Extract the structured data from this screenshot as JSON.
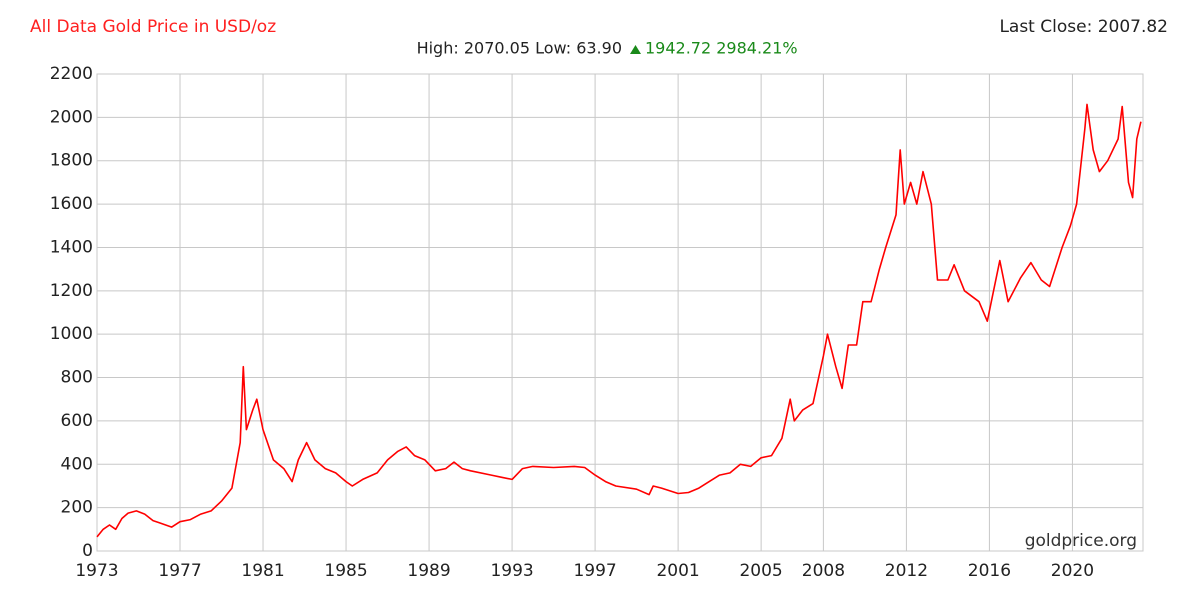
{
  "chart_data": {
    "type": "line",
    "title": "All Data Gold Price in USD/oz",
    "subtitle": "High: 2070.05 Low: 63.90",
    "change": "1942.72 2984.21%",
    "last_close": "Last Close: 2007.82",
    "watermark": "goldprice.org",
    "grid": true,
    "x": [
      1973.0,
      1973.3,
      1973.6,
      1973.9,
      1974.2,
      1974.5,
      1974.9,
      1975.3,
      1975.7,
      1976.0,
      1976.6,
      1977.0,
      1977.5,
      1978.0,
      1978.5,
      1979.0,
      1979.5,
      1979.9,
      1980.05,
      1980.2,
      1980.5,
      1980.7,
      1981.0,
      1981.5,
      1982.0,
      1982.4,
      1982.7,
      1983.1,
      1983.5,
      1984.0,
      1984.5,
      1985.0,
      1985.3,
      1985.8,
      1986.5,
      1987.0,
      1987.5,
      1987.9,
      1988.3,
      1988.8,
      1989.3,
      1989.8,
      1990.2,
      1990.6,
      1991.0,
      1992.0,
      1992.5,
      1993.0,
      1993.5,
      1994.0,
      1995.0,
      1996.0,
      1996.5,
      1997.0,
      1997.5,
      1998.0,
      1999.0,
      1999.6,
      1999.8,
      2000.2,
      2001.0,
      2001.5,
      2002.0,
      2002.5,
      2003.0,
      2003.5,
      2004.0,
      2004.5,
      2005.0,
      2005.5,
      2006.0,
      2006.4,
      2006.6,
      2007.0,
      2007.5,
      2008.0,
      2008.2,
      2008.6,
      2008.9,
      2009.2,
      2009.6,
      2009.9,
      2010.3,
      2010.7,
      2011.0,
      2011.5,
      2011.7,
      2011.9,
      2012.2,
      2012.5,
      2012.8,
      2013.2,
      2013.5,
      2014.0,
      2014.3,
      2014.8,
      2015.5,
      2015.9,
      2016.5,
      2016.9,
      2017.5,
      2018.0,
      2018.5,
      2018.9,
      2019.5,
      2019.9,
      2020.2,
      2020.6,
      2020.7,
      2021.0,
      2021.3,
      2021.7,
      2022.2,
      2022.4,
      2022.7,
      2022.9,
      2023.1,
      2023.3
    ],
    "series": [
      {
        "name": "Gold Price",
        "color": "#ff0000",
        "values": [
          65,
          100,
          120,
          100,
          150,
          175,
          185,
          170,
          140,
          130,
          110,
          135,
          145,
          170,
          185,
          230,
          290,
          500,
          850,
          560,
          650,
          700,
          560,
          420,
          380,
          320,
          420,
          500,
          420,
          380,
          360,
          320,
          300,
          330,
          360,
          420,
          460,
          480,
          440,
          420,
          370,
          380,
          410,
          380,
          370,
          350,
          340,
          330,
          380,
          390,
          385,
          390,
          385,
          350,
          320,
          300,
          285,
          260,
          300,
          290,
          265,
          270,
          290,
          320,
          350,
          360,
          400,
          390,
          430,
          440,
          520,
          700,
          600,
          650,
          680,
          900,
          1000,
          850,
          750,
          950,
          950,
          1150,
          1150,
          1300,
          1400,
          1550,
          1850,
          1600,
          1700,
          1600,
          1750,
          1600,
          1250,
          1250,
          1320,
          1200,
          1150,
          1060,
          1340,
          1150,
          1260,
          1330,
          1250,
          1220,
          1400,
          1500,
          1600,
          1950,
          2060,
          1850,
          1750,
          1800,
          1900,
          2050,
          1700,
          1630,
          1900,
          1980
        ]
      }
    ],
    "xlim": [
      1973,
      2023.4
    ],
    "xticks": [
      1973,
      1977,
      1981,
      1985,
      1989,
      1993,
      1997,
      2001,
      2005,
      2008,
      2012,
      2016,
      2020
    ],
    "ylim": [
      0,
      2200
    ],
    "yticks": [
      0,
      200,
      400,
      600,
      800,
      1000,
      1200,
      1400,
      1600,
      1800,
      2000,
      2200
    ]
  }
}
